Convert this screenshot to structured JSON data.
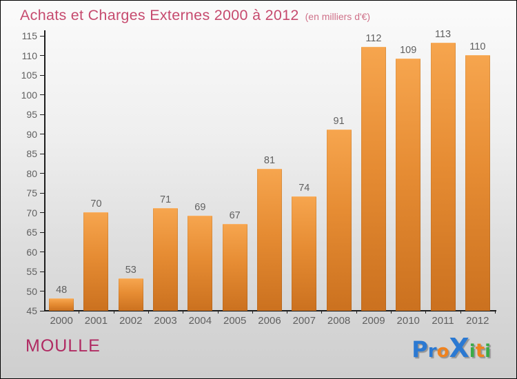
{
  "header": {
    "title": "Achats et Charges Externes 2000 à 2012",
    "subtitle": "(en milliers d'€)"
  },
  "footer": {
    "company": "MOULLE",
    "logo": {
      "name": "Proxiti",
      "letters": [
        {
          "ch": "P",
          "color": "#2b79d2",
          "size": 32
        },
        {
          "ch": "r",
          "color": "#2b79d2",
          "size": 26
        },
        {
          "ch": "o",
          "color": "#f0821e",
          "size": 26
        },
        {
          "ch": "X",
          "color": "#2b79d2",
          "size": 38
        },
        {
          "ch": "i",
          "color": "#3aab46",
          "size": 26
        },
        {
          "ch": "t",
          "color": "#f0821e",
          "size": 28
        },
        {
          "ch": "i",
          "color": "#3aab46",
          "size": 26
        }
      ]
    }
  },
  "colors": {
    "title": "#c64a6e",
    "subtitle": "#cf7189",
    "company": "#b02a62",
    "axis": "#1c1c1c",
    "labels": "#606060",
    "bar-top": "#f6a54e",
    "bar-mid": "#e68c33",
    "bar-bottom": "#cb711f",
    "bar-cap": "#f8b266"
  },
  "chart_data": {
    "type": "bar",
    "title": "Achats et Charges Externes 2000 à 2012",
    "subtitle": "(en milliers d'€)",
    "categories": [
      "2000",
      "2001",
      "2002",
      "2003",
      "2004",
      "2005",
      "2006",
      "2007",
      "2008",
      "2009",
      "2010",
      "2011",
      "2012"
    ],
    "values": [
      48,
      70,
      53,
      71,
      69,
      67,
      81,
      74,
      91,
      112,
      109,
      113,
      110
    ],
    "xlabel": "",
    "ylabel": "",
    "ylim": [
      45,
      115
    ],
    "ytick_step": 5,
    "grid": false,
    "legend": false,
    "value_labels": true,
    "footer_left": "MOULLE",
    "footer_right_logo": "Proxiti"
  }
}
